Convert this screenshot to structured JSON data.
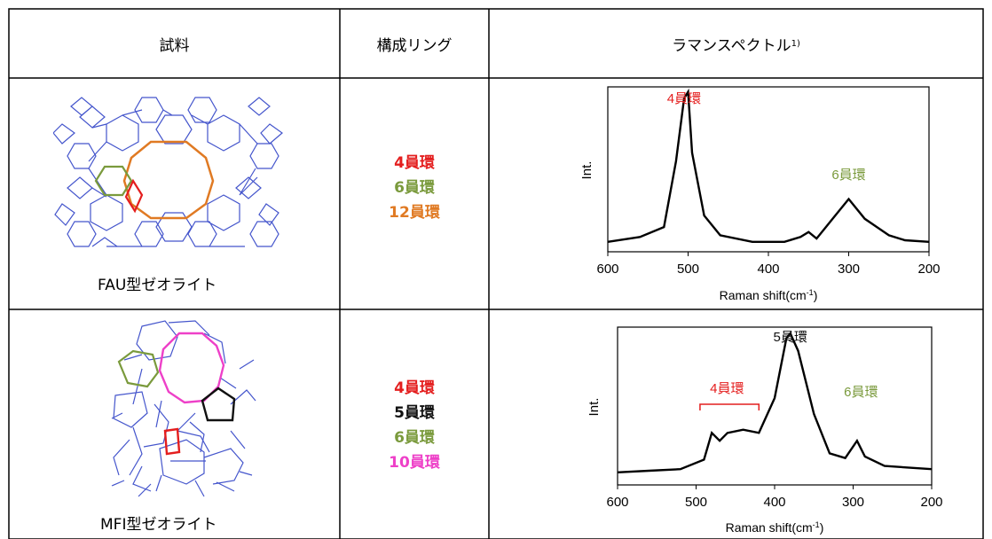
{
  "headers": {
    "sample": "試料",
    "rings": "構成リング",
    "raman": "ラマンスペクトル",
    "raman_sup": "1)"
  },
  "colors": {
    "red": "#e41e1e",
    "green": "#7a9a3c",
    "orange": "#e07a23",
    "magenta": "#ee40c8",
    "black": "#111111",
    "blue": "#3344cc"
  },
  "rows": [
    {
      "sample_name": "FAU型ゼオライト",
      "rings": [
        {
          "label": "4員環",
          "color": "#e41e1e"
        },
        {
          "label": "6員環",
          "color": "#7a9a3c"
        },
        {
          "label": "12員環",
          "color": "#e07a23"
        }
      ],
      "chart": {
        "ylabel": "Int.",
        "xlabel": "Raman shift(cm",
        "xlabel_sup": "-1",
        "xlabel_end": ")",
        "ticks": [
          "600",
          "500",
          "400",
          "300",
          "200"
        ],
        "peak_labels": [
          {
            "text": "4員環",
            "color": "#e41e1e"
          },
          {
            "text": "6員環",
            "color": "#7a9a3c"
          }
        ]
      }
    },
    {
      "sample_name": "MFI型ゼオライト",
      "rings": [
        {
          "label": "4員環",
          "color": "#e41e1e"
        },
        {
          "label": "5員環",
          "color": "#111111"
        },
        {
          "label": "6員環",
          "color": "#7a9a3c"
        },
        {
          "label": "10員環",
          "color": "#ee40c8"
        }
      ],
      "chart": {
        "ylabel": "Int.",
        "xlabel": "Raman shift(cm",
        "xlabel_sup": "-1",
        "xlabel_end": ")",
        "ticks": [
          "600",
          "500",
          "400",
          "300",
          "200"
        ],
        "peak_labels": [
          {
            "text": "5員環",
            "color": "#111111"
          },
          {
            "text": "4員環",
            "color": "#e41e1e"
          },
          {
            "text": "6員環",
            "color": "#7a9a3c"
          }
        ]
      }
    }
  ],
  "chart_data": [
    {
      "type": "line",
      "title": "",
      "xlabel": "Raman shift(cm-1)",
      "ylabel": "Int.",
      "xlim": [
        600,
        200
      ],
      "x_reversed": true,
      "grid": false,
      "x": [
        600,
        560,
        530,
        515,
        505,
        500,
        495,
        480,
        460,
        420,
        380,
        360,
        350,
        340,
        320,
        300,
        280,
        250,
        230,
        200
      ],
      "series": [
        {
          "values": [
            0.06,
            0.09,
            0.15,
            0.55,
            0.93,
            0.97,
            0.6,
            0.22,
            0.1,
            0.06,
            0.06,
            0.09,
            0.12,
            0.08,
            0.2,
            0.32,
            0.2,
            0.1,
            0.07,
            0.06
          ]
        }
      ],
      "annotations": [
        {
          "text": "4員環",
          "x": 505
        },
        {
          "text": "6員環",
          "x": 300
        }
      ]
    },
    {
      "type": "line",
      "title": "",
      "xlabel": "Raman shift(cm-1)",
      "ylabel": "Int.",
      "xlim": [
        600,
        200
      ],
      "x_reversed": true,
      "grid": false,
      "x": [
        600,
        560,
        520,
        490,
        480,
        470,
        460,
        440,
        420,
        400,
        385,
        380,
        370,
        350,
        330,
        310,
        295,
        285,
        260,
        230,
        200
      ],
      "series": [
        {
          "values": [
            0.08,
            0.09,
            0.1,
            0.16,
            0.33,
            0.28,
            0.33,
            0.35,
            0.33,
            0.55,
            0.93,
            0.96,
            0.85,
            0.45,
            0.2,
            0.17,
            0.28,
            0.18,
            0.12,
            0.11,
            0.1
          ]
        }
      ],
      "annotations": [
        {
          "text": "5員環",
          "x": 380
        },
        {
          "text": "4員環",
          "x": 455
        },
        {
          "text": "6員環",
          "x": 290
        }
      ]
    }
  ]
}
